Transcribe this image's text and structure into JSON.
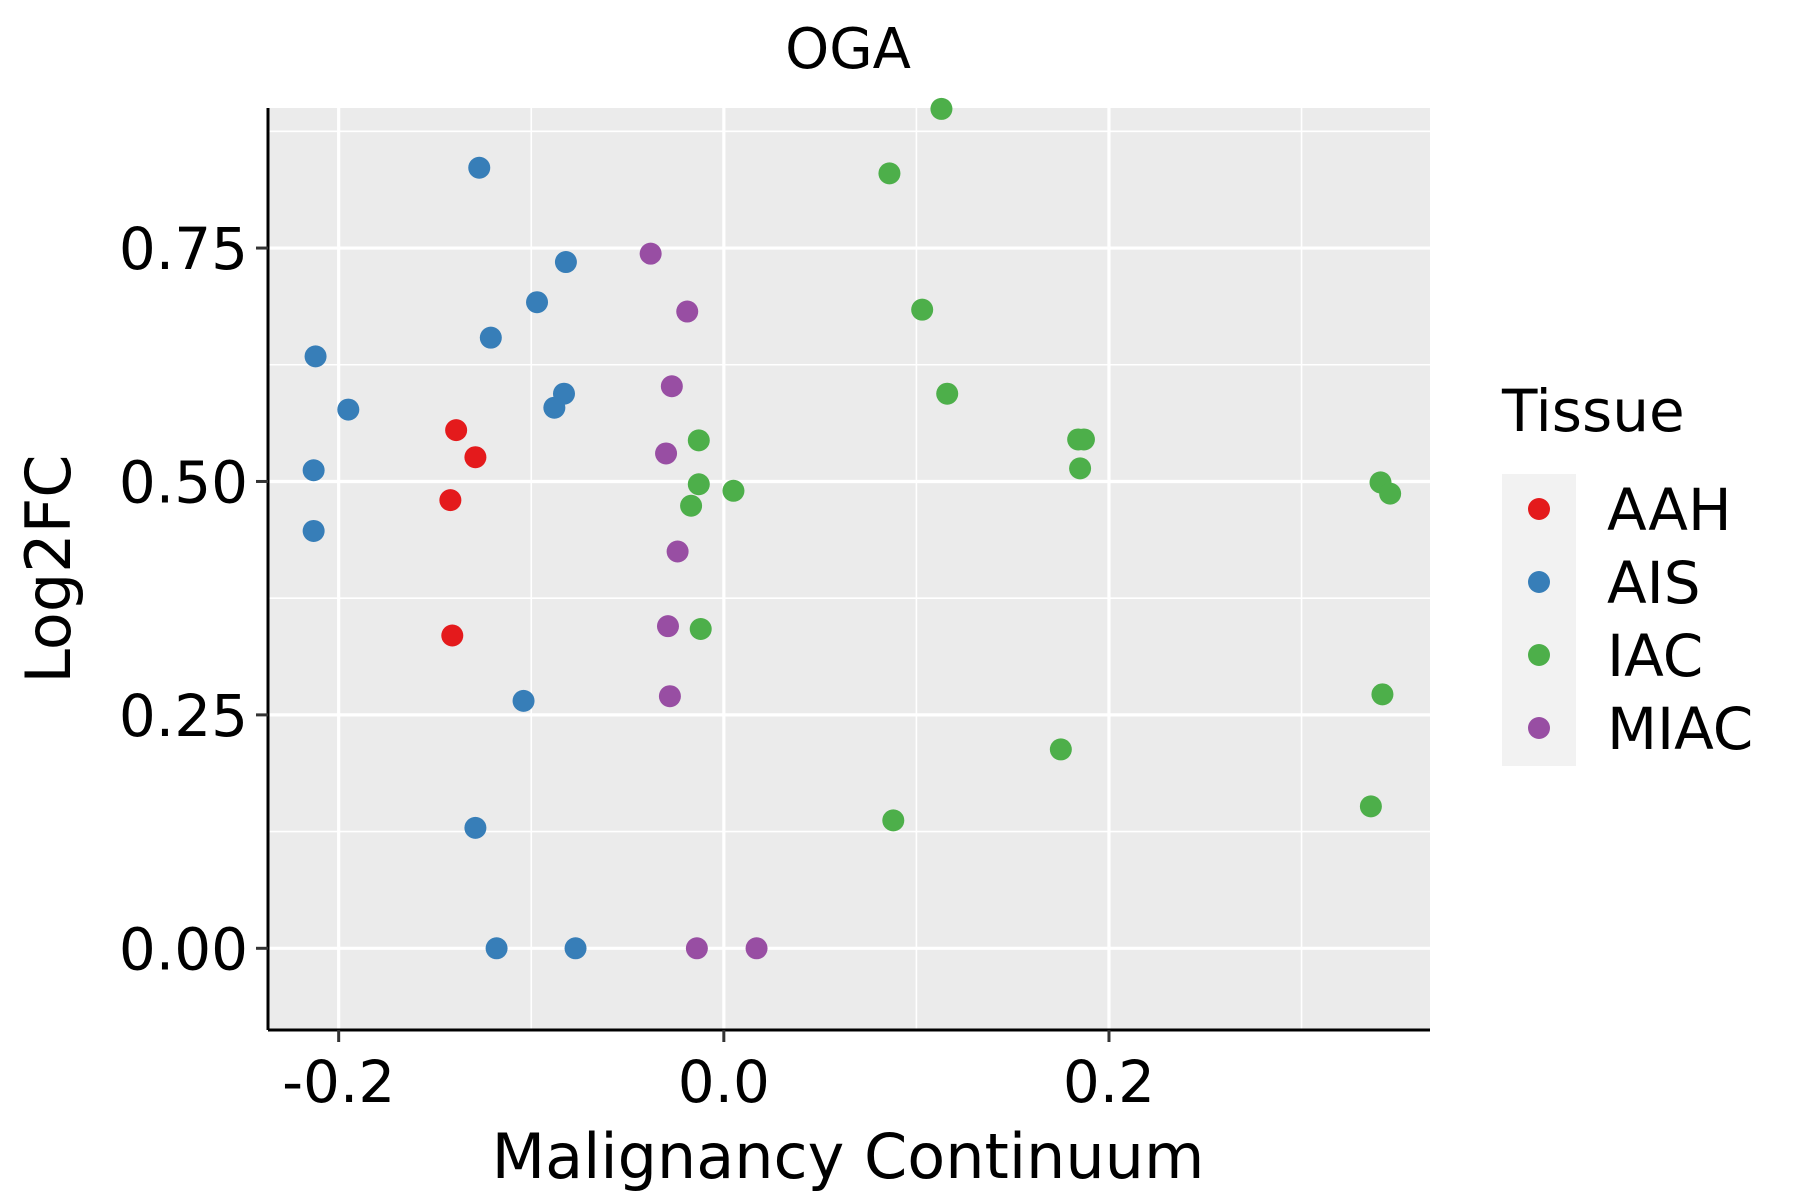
{
  "chart_data": {
    "type": "scatter",
    "title": "OGA",
    "xlabel": "Malignancy Continuum",
    "ylabel": "Log2FC",
    "xlim": [
      -0.2367,
      0.3667
    ],
    "ylim": [
      -0.0875,
      0.9
    ],
    "x_ticks": [
      -0.2,
      0.0,
      0.2
    ],
    "x_tick_labels": [
      "-0.2",
      "0.0",
      "0.2"
    ],
    "x_minor_ticks": [
      -0.1,
      0.1,
      0.3
    ],
    "y_ticks": [
      0.0,
      0.25,
      0.5,
      0.75
    ],
    "y_tick_labels": [
      "0.00",
      "0.25",
      "0.50",
      "0.75"
    ],
    "y_minor_ticks": [
      0.125,
      0.375,
      0.625,
      0.875
    ],
    "grid": true,
    "legend": {
      "title": "Tissue",
      "position": "right",
      "entries": [
        {
          "name": "AAH",
          "color": "#E41A1C"
        },
        {
          "name": "AIS",
          "color": "#377EB8"
        },
        {
          "name": "IAC",
          "color": "#4DAF4A"
        },
        {
          "name": "MIAC",
          "color": "#984EA3"
        }
      ]
    },
    "series": [
      {
        "name": "AAH",
        "color": "#E41A1C",
        "points": [
          [
            -0.139,
            0.555
          ],
          [
            -0.129,
            0.526
          ],
          [
            -0.142,
            0.48
          ],
          [
            -0.141,
            0.335
          ]
        ]
      },
      {
        "name": "AIS",
        "color": "#377EB8",
        "points": [
          [
            -0.127,
            0.836
          ],
          [
            -0.082,
            0.735
          ],
          [
            -0.097,
            0.692
          ],
          [
            -0.121,
            0.654
          ],
          [
            -0.212,
            0.634
          ],
          [
            -0.195,
            0.577
          ],
          [
            -0.083,
            0.594
          ],
          [
            -0.088,
            0.579
          ],
          [
            -0.213,
            0.512
          ],
          [
            -0.213,
            0.447
          ],
          [
            -0.104,
            0.265
          ],
          [
            -0.129,
            0.129
          ],
          [
            -0.118,
            0.0
          ],
          [
            -0.077,
            0.0
          ]
        ]
      },
      {
        "name": "IAC",
        "color": "#4DAF4A",
        "points": [
          [
            0.113,
            0.899
          ],
          [
            0.086,
            0.83
          ],
          [
            0.103,
            0.684
          ],
          [
            0.116,
            0.594
          ],
          [
            0.184,
            0.545
          ],
          [
            0.187,
            0.545
          ],
          [
            0.185,
            0.514
          ],
          [
            0.341,
            0.499
          ],
          [
            0.346,
            0.487
          ],
          [
            -0.013,
            0.544
          ],
          [
            -0.013,
            0.497
          ],
          [
            0.005,
            0.49
          ],
          [
            -0.017,
            0.474
          ],
          [
            -0.012,
            0.342
          ],
          [
            0.342,
            0.272
          ],
          [
            0.175,
            0.213
          ],
          [
            0.088,
            0.137
          ],
          [
            0.336,
            0.152
          ]
        ]
      },
      {
        "name": "MIAC",
        "color": "#984EA3",
        "points": [
          [
            -0.038,
            0.744
          ],
          [
            -0.019,
            0.682
          ],
          [
            -0.027,
            0.602
          ],
          [
            -0.03,
            0.53
          ],
          [
            -0.024,
            0.425
          ],
          [
            -0.029,
            0.345
          ],
          [
            -0.028,
            0.27
          ],
          [
            -0.014,
            0.0
          ],
          [
            0.017,
            0.0
          ]
        ]
      }
    ]
  }
}
